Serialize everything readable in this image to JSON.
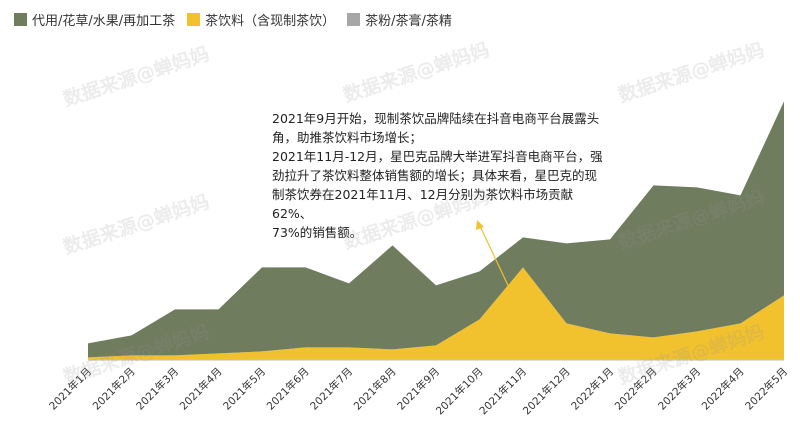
{
  "legend": [
    {
      "name": "代用/花草/水果/再加工茶",
      "color": "#6f7c5e"
    },
    {
      "name": "茶饮料（含现制茶饮）",
      "color": "#f2c12e"
    },
    {
      "name": "茶粉/茶膏/茶精",
      "color": "#a6a6a6"
    }
  ],
  "annotation": {
    "line1": "2021年9月开始，现制茶饮品牌陆续在抖音电商平台展露头",
    "line2": "角，助推茶饮料市场增长；",
    "line3": "2021年11月-12月，星巴克品牌大举进军抖音电商平台，强",
    "line4": "劲拉升了茶饮料整体销售额的增长；具体来看，星巴克的现",
    "line5": "制茶饮券在2021年11月、12月分别为茶饮料市场贡献62%、",
    "line6": "73%的销售额。"
  },
  "watermark": "数据来源@蝉妈妈",
  "chart_data": {
    "type": "area",
    "stacked": true,
    "categories": [
      "2021年1月",
      "2021年2月",
      "2021年3月",
      "2021年4月",
      "2021年5月",
      "2021年6月",
      "2021年7月",
      "2021年8月",
      "2021年9月",
      "2021年10月",
      "2021年11月",
      "2021年12月",
      "2022年1月",
      "2022年2月",
      "2022年3月",
      "2022年4月",
      "2022年5月"
    ],
    "series": [
      {
        "name": "茶粉/茶膏/茶精",
        "color": "#a6a6a6",
        "values": [
          0.3,
          0.3,
          0.3,
          0.3,
          0.3,
          0.3,
          0.3,
          0.3,
          0.3,
          0.3,
          0.3,
          0.3,
          0.3,
          0.3,
          0.3,
          0.3,
          0.3
        ]
      },
      {
        "name": "茶饮料（含现制茶饮）",
        "color": "#f2c12e",
        "values": [
          1,
          2,
          2,
          3,
          4,
          6,
          6,
          5,
          7,
          20,
          46,
          18,
          13,
          11,
          14,
          18,
          32
        ]
      },
      {
        "name": "代用/花草/水果/再加工茶",
        "color": "#6f7c5e",
        "values": [
          7,
          10,
          23,
          22,
          42,
          40,
          32,
          52,
          30,
          24,
          15,
          40,
          47,
          76,
          72,
          64,
          97
        ]
      }
    ],
    "ylim": [
      0,
      140
    ],
    "legend_position": "top-left",
    "grid": false
  }
}
